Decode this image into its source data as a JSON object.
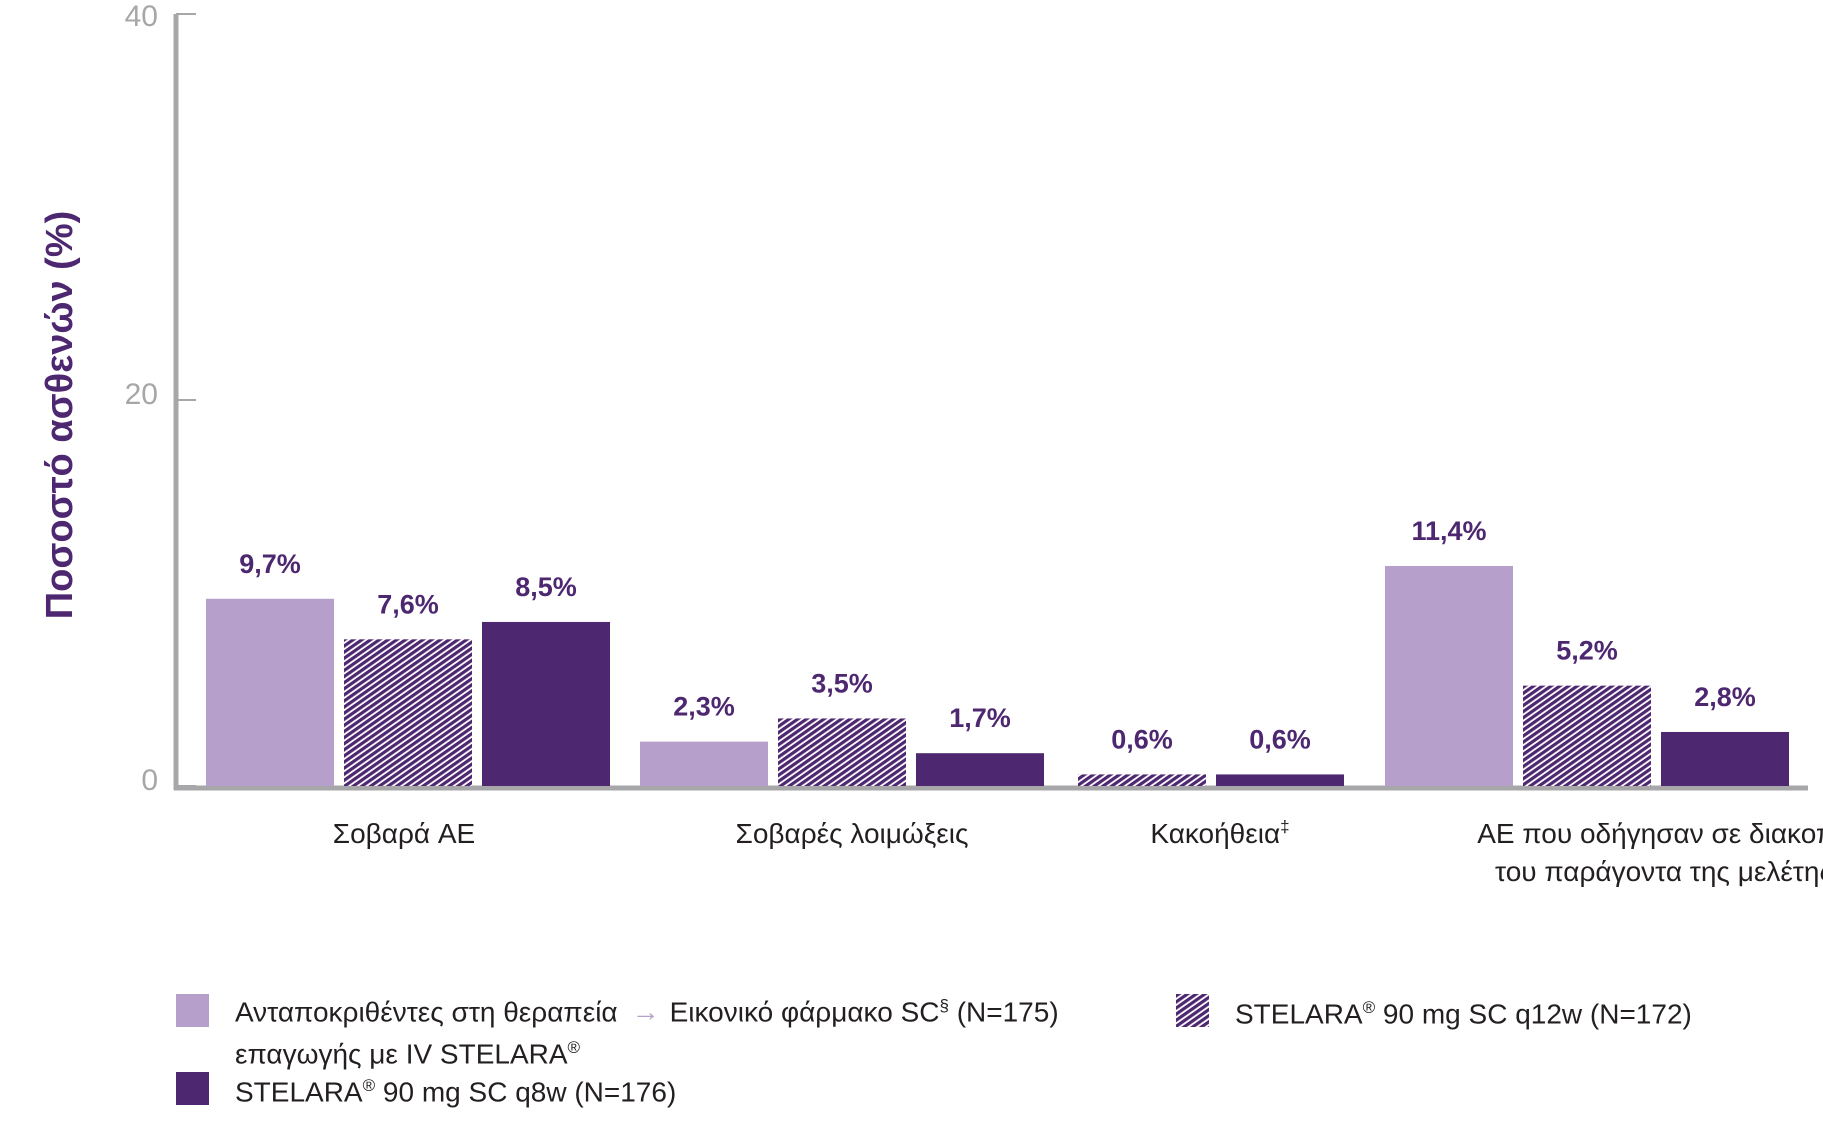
{
  "chart_data": {
    "type": "bar",
    "ylabel": "Ποσοστό ασθενών (%)",
    "ylim": [
      0,
      40
    ],
    "yticks": [
      0,
      20,
      40
    ],
    "categories": [
      {
        "lines": [
          "Σοβαρά AE"
        ],
        "sup": ""
      },
      {
        "lines": [
          "Σοβαρές λοιμώξεις"
        ],
        "sup": ""
      },
      {
        "lines": [
          "Κακοήθεια"
        ],
        "sup": "‡"
      },
      {
        "lines": [
          "AE που οδήγησαν σε διακοπή",
          "του παράγοντα της μελέτης"
        ],
        "sup": ""
      }
    ],
    "series": [
      {
        "name": "placebo",
        "style": "solid-light",
        "color": "#b79fcb",
        "values": [
          9.7,
          2.3,
          null,
          11.4
        ],
        "labels": [
          "9,7%",
          "2,3%",
          "",
          "11,4%"
        ]
      },
      {
        "name": "q12w",
        "style": "hatched",
        "color": "#4d2770",
        "values": [
          7.6,
          3.5,
          0.6,
          5.2
        ],
        "labels": [
          "7,6%",
          "3,5%",
          "0,6%",
          "5,2%"
        ]
      },
      {
        "name": "q8w",
        "style": "solid-dark",
        "color": "#4d2770",
        "values": [
          8.5,
          1.7,
          0.6,
          2.8
        ],
        "labels": [
          "8,5%",
          "1,7%",
          "0,6%",
          "2,8%"
        ]
      }
    ]
  },
  "legend": {
    "placebo": {
      "part1_line1": "Ανταποκριθέντες στη θεραπεία",
      "part1_line2": "επαγωγής με IV STELARA",
      "reg_mark": "®",
      "arrow": "→",
      "part2": "Εικονικό φάρμακο SC",
      "sup": "§",
      "n": " (N=175)"
    },
    "q12w": {
      "brand": "STELARA",
      "reg_mark": "®",
      "text": " 90 mg SC q12w (N=172)"
    },
    "q8w": {
      "brand": "STELARA",
      "reg_mark": "®",
      "text": " 90 mg SC q8w (N=176)"
    }
  },
  "colors": {
    "light": "#b79fcb",
    "dark": "#4d2770",
    "axis": "#a7a7a9"
  }
}
